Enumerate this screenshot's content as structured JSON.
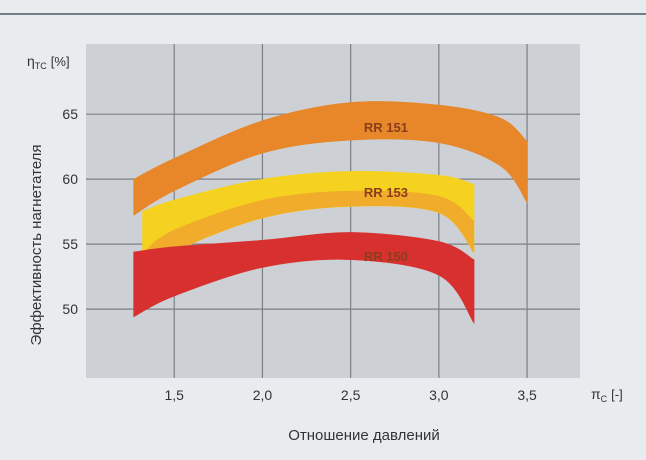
{
  "chart_data": {
    "type": "area",
    "x_axis": {
      "symbol": "π",
      "symbol_sub": "C",
      "unit": "[-]",
      "label": "Отношение давлений",
      "ticks": [
        "1,5",
        "2,0",
        "2,5",
        "3,0",
        "3,5"
      ],
      "tick_values": [
        1.5,
        2.0,
        2.5,
        3.0,
        3.5
      ],
      "range": [
        1.0,
        3.8
      ]
    },
    "y_axis": {
      "symbol": "η",
      "symbol_sub": "TC",
      "unit": "[%]",
      "label": "Эффективность нагнетателя",
      "ticks": [
        "50",
        "55",
        "60",
        "65"
      ],
      "tick_values": [
        50,
        55,
        60,
        65
      ],
      "range": [
        44.7,
        70.4
      ]
    },
    "grid": true,
    "series": [
      {
        "name": "RR 151",
        "color": "#e8862a",
        "lower": [
          [
            1.27,
            57.2
          ],
          [
            1.5,
            59.1
          ],
          [
            2.0,
            62.0
          ],
          [
            2.5,
            63.0
          ],
          [
            3.0,
            62.8
          ],
          [
            3.35,
            61.0
          ],
          [
            3.5,
            58.2
          ]
        ],
        "upper": [
          [
            1.27,
            60.0
          ],
          [
            1.5,
            61.6
          ],
          [
            2.0,
            64.5
          ],
          [
            2.5,
            65.9
          ],
          [
            3.0,
            65.7
          ],
          [
            3.35,
            64.7
          ],
          [
            3.5,
            62.9
          ]
        ]
      },
      {
        "name": "RR 153",
        "color": "#f5d21f",
        "lower": [
          [
            1.32,
            52.5
          ],
          [
            1.5,
            54.4
          ],
          [
            2.0,
            57.0
          ],
          [
            2.5,
            57.9
          ],
          [
            3.0,
            57.4
          ],
          [
            3.2,
            54.3
          ]
        ],
        "upper": [
          [
            1.32,
            57.5
          ],
          [
            1.5,
            58.4
          ],
          [
            2.0,
            60.0
          ],
          [
            2.5,
            60.6
          ],
          [
            3.0,
            60.3
          ],
          [
            3.2,
            59.6
          ]
        ],
        "inner_color": "#f0ac2a",
        "inner_lower": [
          [
            1.32,
            52.5
          ],
          [
            1.5,
            54.4
          ],
          [
            2.0,
            57.0
          ],
          [
            2.5,
            57.9
          ],
          [
            3.0,
            57.4
          ],
          [
            3.2,
            54.3
          ]
        ],
        "inner_upper": [
          [
            1.32,
            54.3
          ],
          [
            1.5,
            56.1
          ],
          [
            2.0,
            58.4
          ],
          [
            2.5,
            59.1
          ],
          [
            3.0,
            58.7
          ],
          [
            3.2,
            56.8
          ]
        ]
      },
      {
        "name": "RR 150",
        "color": "#d8302e",
        "lower": [
          [
            1.27,
            49.4
          ],
          [
            1.5,
            51.0
          ],
          [
            2.0,
            53.2
          ],
          [
            2.5,
            53.8
          ],
          [
            3.0,
            52.6
          ],
          [
            3.2,
            48.9
          ]
        ],
        "upper": [
          [
            1.27,
            54.4
          ],
          [
            1.5,
            54.8
          ],
          [
            2.0,
            55.3
          ],
          [
            2.5,
            55.9
          ],
          [
            3.0,
            55.2
          ],
          [
            3.2,
            53.8
          ]
        ]
      }
    ],
    "series_labels": [
      {
        "text": "RR 151",
        "x": 2.7,
        "y": 64.0
      },
      {
        "text": "RR 153",
        "x": 2.7,
        "y": 59.0
      },
      {
        "text": "RR 150",
        "x": 2.7,
        "y": 54.1
      }
    ],
    "colors": {
      "background": "#e9ecef",
      "plot_background": "#cdd1d5",
      "grid": "#7c8086",
      "top_rule": "#4a5866",
      "label_text": "#8a3e1c",
      "axis_text": "#333333"
    }
  }
}
